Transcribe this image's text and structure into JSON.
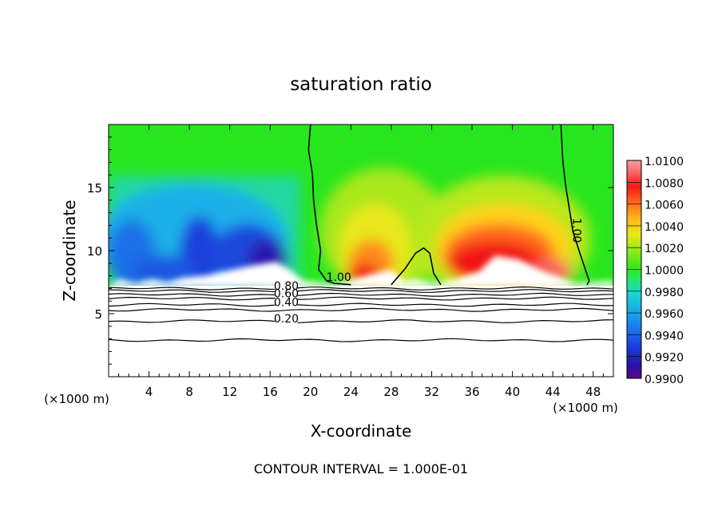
{
  "chart_data": {
    "type": "heatmap",
    "title": "saturation ratio",
    "xlabel": "X-coordinate",
    "ylabel": "Z-coordinate",
    "x_unit_note": "(×1000 m)",
    "y_unit_note": "(×1000 m)",
    "footer": "CONTOUR INTERVAL = 1.000E-01",
    "xlim": [
      0,
      50
    ],
    "ylim": [
      0,
      20
    ],
    "x_ticks": [
      4,
      8,
      12,
      16,
      20,
      24,
      28,
      32,
      36,
      40,
      44,
      48
    ],
    "y_ticks": [
      5,
      10,
      15
    ],
    "colorbar": {
      "levels": [
        "1.0100",
        "1.0080",
        "1.0060",
        "1.0040",
        "1.0020",
        "1.0000",
        "0.9980",
        "0.9960",
        "0.9940",
        "0.9920",
        "0.9900"
      ],
      "values": [
        1.01,
        1.008,
        1.006,
        1.004,
        1.002,
        1.0,
        0.998,
        0.996,
        0.994,
        0.992,
        0.99
      ]
    },
    "contour_labels": [
      {
        "text": "1.00",
        "x": 22.8,
        "z": 7.6
      },
      {
        "text": "1.00",
        "x": 46.0,
        "z": 11.6
      },
      {
        "text": "0.80",
        "x": 17.6,
        "z": 6.9
      },
      {
        "text": "0.60",
        "x": 17.6,
        "z": 6.3
      },
      {
        "text": "0.40",
        "x": 17.6,
        "z": 5.6
      },
      {
        "text": "0.20",
        "x": 17.6,
        "z": 4.3
      }
    ],
    "contour_levels_z": [
      7.0,
      6.8,
      6.5,
      6.2,
      5.7,
      5.3,
      4.4,
      2.9
    ],
    "grid": false,
    "legend": "right (colorbar)"
  }
}
